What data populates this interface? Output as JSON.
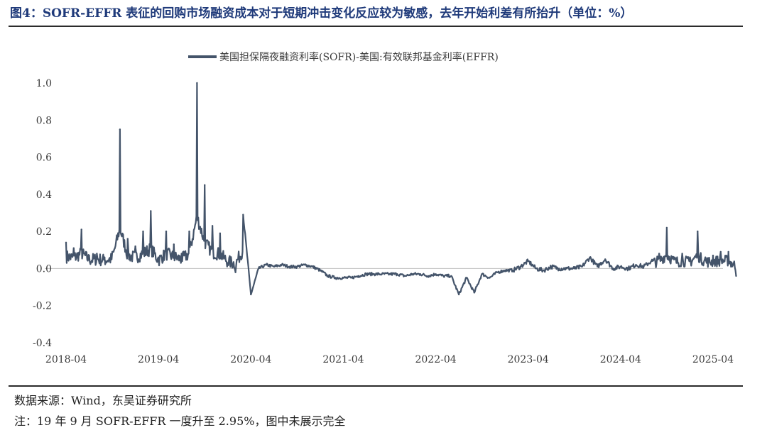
{
  "figure": {
    "title": "图4：SOFR-EFFR 表征的回购市场融资成本对于短期冲击变化反应较为敏感，去年开始利差有所抬升（单位：%）",
    "source": "数据来源：Wind，东吴证券研究所",
    "note": "注：19 年 9 月 SOFR-EFFR 一度升至 2.95%，图中未展示完全"
  },
  "colors": {
    "series": "#44546a",
    "axis": "#bfbfbf",
    "title": "#1f3a7a"
  },
  "chart_data": {
    "type": "line",
    "title": "",
    "xlabel": "",
    "ylabel": "",
    "ylim": [
      -0.4,
      1.0
    ],
    "y_ticks": [
      "-0.4",
      "-0.2",
      "0.0",
      "0.2",
      "0.4",
      "0.6",
      "0.8",
      "1.0"
    ],
    "x_ticks": [
      "2018-04",
      "2019-04",
      "2020-04",
      "2021-04",
      "2022-04",
      "2023-04",
      "2024-04",
      "2025-04"
    ],
    "legend_position": "top-center",
    "series": [
      {
        "name": "美国担保隔夜融资利率(SOFR)-美国:有效联邦基金利率(EFFR)",
        "x": [
          "2018-04",
          "2018-05",
          "2018-06",
          "2018-07",
          "2018-08",
          "2018-09",
          "2018-10",
          "2018-11",
          "2018-12",
          "2019-01",
          "2019-02",
          "2019-03",
          "2019-04",
          "2019-05",
          "2019-06",
          "2019-07",
          "2019-08",
          "2019-09",
          "2019-10",
          "2019-11",
          "2019-12",
          "2020-01",
          "2020-02",
          "2020-03",
          "2020-04",
          "2020-05",
          "2020-06",
          "2020-07",
          "2020-08",
          "2020-09",
          "2020-10",
          "2020-11",
          "2020-12",
          "2021-01",
          "2021-02",
          "2021-03",
          "2021-04",
          "2021-05",
          "2021-06",
          "2021-07",
          "2021-08",
          "2021-09",
          "2021-10",
          "2021-11",
          "2021-12",
          "2022-01",
          "2022-02",
          "2022-03",
          "2022-04",
          "2022-05",
          "2022-06",
          "2022-07",
          "2022-08",
          "2022-09",
          "2022-10",
          "2022-11",
          "2022-12",
          "2023-01",
          "2023-02",
          "2023-03",
          "2023-04",
          "2023-05",
          "2023-06",
          "2023-07",
          "2023-08",
          "2023-09",
          "2023-10",
          "2023-11",
          "2023-12",
          "2024-01",
          "2024-02",
          "2024-03",
          "2024-04",
          "2024-05",
          "2024-06",
          "2024-07",
          "2024-08",
          "2024-09",
          "2024-10",
          "2024-11",
          "2024-12",
          "2025-01",
          "2025-02",
          "2025-03",
          "2025-04",
          "2025-05",
          "2025-06",
          "2025-07"
        ],
        "values": [
          0.14,
          0.11,
          0.21,
          0.07,
          0.08,
          0.06,
          0.09,
          0.75,
          0.16,
          0.12,
          0.2,
          0.31,
          0.06,
          0.2,
          0.13,
          0.08,
          0.2,
          1.0,
          0.45,
          0.23,
          0.19,
          0.03,
          -0.02,
          0.29,
          -0.14,
          0.0,
          0.02,
          0.01,
          0.02,
          0.01,
          0.01,
          0.02,
          0.01,
          -0.01,
          -0.04,
          -0.05,
          -0.05,
          -0.05,
          -0.04,
          -0.03,
          -0.03,
          -0.03,
          -0.03,
          -0.03,
          -0.04,
          -0.03,
          -0.03,
          -0.04,
          -0.03,
          -0.04,
          -0.04,
          -0.14,
          -0.05,
          -0.13,
          -0.03,
          -0.05,
          -0.02,
          -0.01,
          -0.01,
          0.01,
          0.04,
          0.0,
          -0.01,
          0.01,
          0.0,
          0.0,
          0.0,
          0.01,
          0.06,
          0.01,
          0.05,
          0.0,
          0.01,
          0.0,
          0.02,
          0.01,
          0.04,
          0.08,
          0.22,
          0.06,
          0.08,
          0.06,
          0.2,
          0.06,
          0.07,
          0.09,
          0.09,
          -0.04
        ]
      }
    ]
  }
}
